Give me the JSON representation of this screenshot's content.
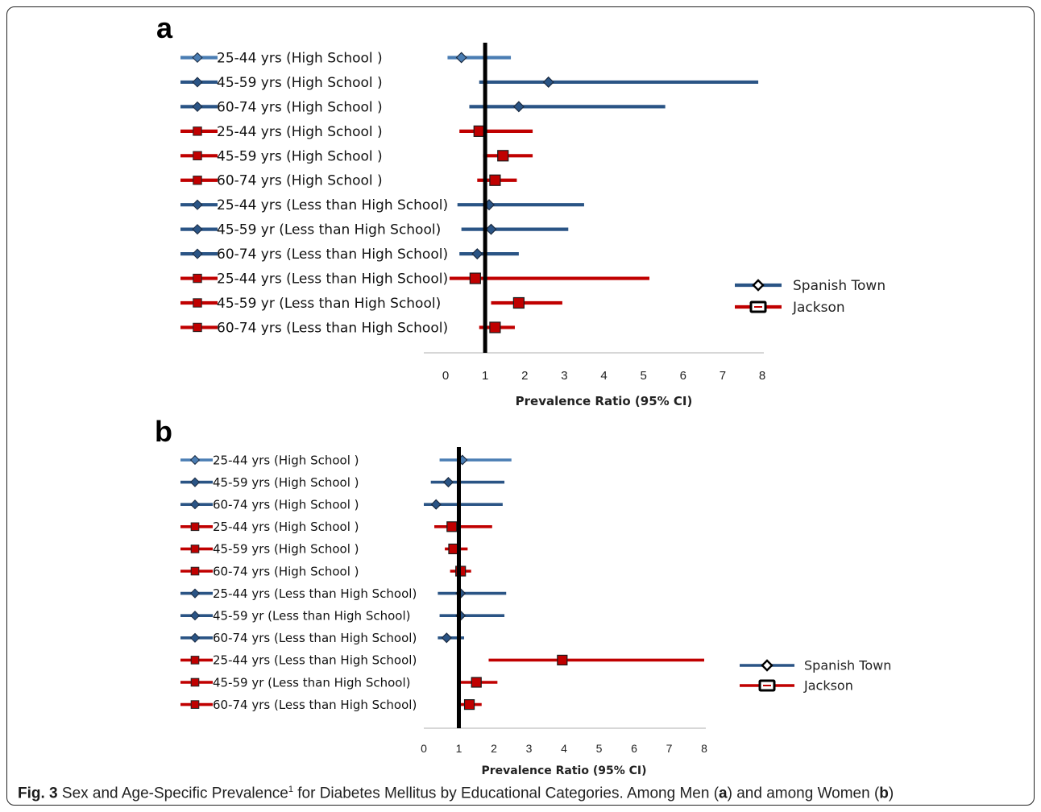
{
  "figure": {
    "caption_label": "Fig. 3",
    "caption_pre": " Sex and Age-Specific Prevalence",
    "caption_sup": "1",
    "caption_mid": " for Diabetes Mellitus by Educational Categories. Among Men (",
    "caption_a": "a",
    "caption_mid2": ") and among Women (",
    "caption_b": "b",
    "caption_end": ")"
  },
  "colors": {
    "spanish_town": "#2a5485",
    "spanish_town_light": "#4a7db3",
    "jackson": "#c00000",
    "reference_line": "#000000"
  },
  "chart_data": [
    {
      "panel": "a",
      "type": "forest",
      "xlabel": "Prevalence Ratio (95% CI)",
      "xlim": [
        0,
        8
      ],
      "xticks": [
        "0",
        "1",
        "2",
        "3",
        "4",
        "5",
        "6",
        "7",
        "8"
      ],
      "reference_line": 1,
      "legend": [
        {
          "name": "Spanish Town",
          "marker": "diamond"
        },
        {
          "name": "Jackson",
          "marker": "square"
        }
      ],
      "legend_position": "right",
      "rows": [
        {
          "label": "25-44 yrs  (High School )",
          "series": "Spanish Town",
          "estimate": 0.4,
          "lower": 0.05,
          "upper": 1.65
        },
        {
          "label": "45-59 yrs (High School )",
          "series": "Spanish Town",
          "estimate": 2.6,
          "lower": 0.85,
          "upper": 7.9
        },
        {
          "label": "60-74 yrs (High School )",
          "series": "Spanish Town",
          "estimate": 1.85,
          "lower": 0.6,
          "upper": 5.55
        },
        {
          "label": "25-44 yrs  (High School )",
          "series": "Jackson",
          "estimate": 0.85,
          "lower": 0.35,
          "upper": 2.2
        },
        {
          "label": "45-59 yrs (High School )",
          "series": "Jackson",
          "estimate": 1.45,
          "lower": 0.95,
          "upper": 2.2
        },
        {
          "label": "60-74 yrs (High School )",
          "series": "Jackson",
          "estimate": 1.25,
          "lower": 0.8,
          "upper": 1.8
        },
        {
          "label": "25-44 yrs (Less than  High School)",
          "series": "Spanish Town",
          "estimate": 1.1,
          "lower": 0.3,
          "upper": 3.5
        },
        {
          "label": "45-59 yr (Less than  High School)",
          "series": "Spanish Town",
          "estimate": 1.15,
          "lower": 0.4,
          "upper": 3.1
        },
        {
          "label": "60-74 yrs (Less than  High School)",
          "series": "Spanish Town",
          "estimate": 0.8,
          "lower": 0.35,
          "upper": 1.85
        },
        {
          "label": "25-44 yrs (Less than  High School)",
          "series": "Jackson",
          "estimate": 0.75,
          "lower": 0.1,
          "upper": 5.15
        },
        {
          "label": "45-59 yr (Less than  High School)",
          "series": "Jackson",
          "estimate": 1.85,
          "lower": 1.15,
          "upper": 2.95
        },
        {
          "label": "60-74 yrs (Less than  High School)",
          "series": "Jackson",
          "estimate": 1.25,
          "lower": 0.85,
          "upper": 1.75
        }
      ]
    },
    {
      "panel": "b",
      "type": "forest",
      "xlabel": "Prevalence Ratio (95% CI)",
      "xlim": [
        0,
        8
      ],
      "xticks": [
        "0",
        "1",
        "2",
        "3",
        "4",
        "5",
        "6",
        "7",
        "8"
      ],
      "reference_line": 1,
      "legend": [
        {
          "name": "Spanish Town",
          "marker": "diamond"
        },
        {
          "name": "Jackson",
          "marker": "square"
        }
      ],
      "legend_position": "right",
      "rows": [
        {
          "label": "25-44 yrs  (High School )",
          "series": "Spanish Town",
          "estimate": 1.1,
          "lower": 0.45,
          "upper": 2.5
        },
        {
          "label": "45-59 yrs (High School )",
          "series": "Spanish Town",
          "estimate": 0.7,
          "lower": 0.2,
          "upper": 2.3
        },
        {
          "label": "60-74 yrs (High School )",
          "series": "Spanish Town",
          "estimate": 0.35,
          "lower": 0.0,
          "upper": 2.25
        },
        {
          "label": "25-44 yrs  (High School )",
          "series": "Jackson",
          "estimate": 0.8,
          "lower": 0.3,
          "upper": 1.95
        },
        {
          "label": "45-59 yrs (High School )",
          "series": "Jackson",
          "estimate": 0.85,
          "lower": 0.6,
          "upper": 1.25
        },
        {
          "label": "60-74 yrs (High School )",
          "series": "Jackson",
          "estimate": 1.05,
          "lower": 0.75,
          "upper": 1.35
        },
        {
          "label": "25-44 yrs (Less than  High School)",
          "series": "Spanish Town",
          "estimate": 1.05,
          "lower": 0.4,
          "upper": 2.35
        },
        {
          "label": "45-59 yr (Less than  High School)",
          "series": "Spanish Town",
          "estimate": 1.05,
          "lower": 0.45,
          "upper": 2.3
        },
        {
          "label": "60-74 yrs (Less than  High School)",
          "series": "Spanish Town",
          "estimate": 0.65,
          "lower": 0.4,
          "upper": 1.15
        },
        {
          "label": "25-44 yrs (Less than  High School)",
          "series": "Jackson",
          "estimate": 3.95,
          "lower": 1.85,
          "upper": 8.0
        },
        {
          "label": "45-59 yr (Less than  High School)",
          "series": "Jackson",
          "estimate": 1.5,
          "lower": 1.05,
          "upper": 2.1
        },
        {
          "label": "60-74 yrs (Less than  High School)",
          "series": "Jackson",
          "estimate": 1.3,
          "lower": 1.0,
          "upper": 1.65
        }
      ]
    }
  ]
}
